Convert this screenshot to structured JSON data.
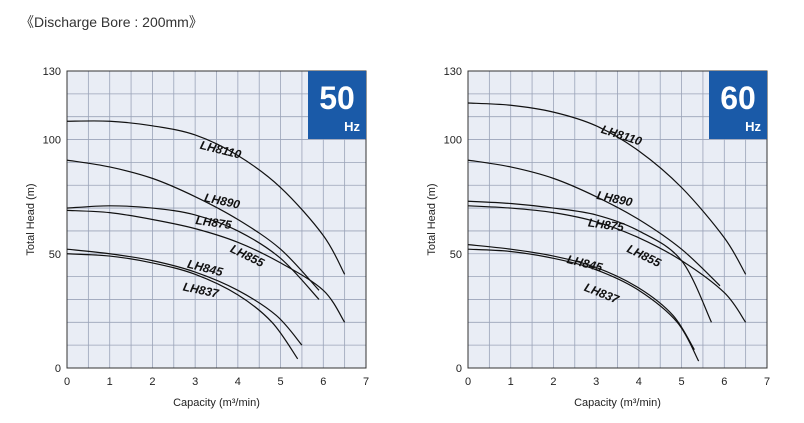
{
  "caption": "《Discharge Bore : 200mm》",
  "chart_data": [
    {
      "type": "line",
      "badge": {
        "number": "50",
        "unit": "Hz"
      },
      "xlabel": "Capacity (m³/min)",
      "ylabel": "Total Head (m)",
      "xlim": [
        0,
        7
      ],
      "ylim": [
        0,
        130
      ],
      "xticks": [
        "0",
        "1",
        "2",
        "3",
        "4",
        "5",
        "6",
        "7"
      ],
      "yticks": [
        {
          "v": 0,
          "t": "0"
        },
        {
          "v": 50,
          "t": "50"
        },
        {
          "v": 100,
          "t": "100"
        },
        {
          "v": 130,
          "t": "130"
        }
      ],
      "grid": true,
      "series": [
        {
          "name": "LH8110",
          "x": [
            0,
            1,
            2,
            3,
            4,
            5,
            6,
            6.5
          ],
          "y": [
            108,
            108,
            106,
            102,
            93,
            79,
            58,
            41
          ]
        },
        {
          "name": "LH890",
          "x": [
            0,
            1,
            2,
            3,
            4,
            5,
            5.9
          ],
          "y": [
            91,
            88,
            83,
            75,
            65,
            52,
            34
          ]
        },
        {
          "name": "LH875",
          "x": [
            0,
            1,
            2,
            3,
            4,
            5,
            5.9
          ],
          "y": [
            70,
            71,
            70,
            67,
            60,
            48,
            30
          ]
        },
        {
          "name": "LH855",
          "x": [
            0,
            1,
            2,
            3,
            4,
            5,
            6,
            6.5
          ],
          "y": [
            69,
            68,
            65,
            61,
            55,
            46,
            34,
            20
          ]
        },
        {
          "name": "LH845",
          "x": [
            0,
            1,
            2,
            3,
            4,
            4.9,
            5.5
          ],
          "y": [
            52,
            50,
            47,
            42,
            34,
            23,
            10
          ]
        },
        {
          "name": "LH837",
          "x": [
            0,
            1,
            2,
            3,
            4,
            4.8,
            5.4
          ],
          "y": [
            50,
            49,
            46,
            41,
            32,
            20,
            4
          ]
        }
      ],
      "labels": [
        {
          "text": "LH8110",
          "x": 3.1,
          "y": 96,
          "rot": 14
        },
        {
          "text": "LH890",
          "x": 3.2,
          "y": 73,
          "rot": 12
        },
        {
          "text": "LH875",
          "x": 3.0,
          "y": 63,
          "rot": 8
        },
        {
          "text": "LH855",
          "x": 3.8,
          "y": 51,
          "rot": 26
        },
        {
          "text": "LH845",
          "x": 2.8,
          "y": 44,
          "rot": 14
        },
        {
          "text": "LH837",
          "x": 2.7,
          "y": 34,
          "rot": 12
        }
      ]
    },
    {
      "type": "line",
      "badge": {
        "number": "60",
        "unit": "Hz"
      },
      "xlabel": "Capacity (m³/min)",
      "ylabel": "Total Head (m)",
      "xlim": [
        0,
        7
      ],
      "ylim": [
        0,
        130
      ],
      "xticks": [
        "0",
        "1",
        "2",
        "3",
        "4",
        "5",
        "6",
        "7"
      ],
      "yticks": [
        {
          "v": 0,
          "t": "0"
        },
        {
          "v": 50,
          "t": "50"
        },
        {
          "v": 100,
          "t": "100"
        },
        {
          "v": 130,
          "t": "130"
        }
      ],
      "grid": true,
      "series": [
        {
          "name": "LH8110",
          "x": [
            0,
            1,
            2,
            3,
            4,
            5,
            6,
            6.5
          ],
          "y": [
            116,
            115,
            112,
            106,
            95,
            79,
            57,
            41
          ]
        },
        {
          "name": "LH890",
          "x": [
            0,
            1,
            2,
            3,
            4,
            5,
            5.9
          ],
          "y": [
            91,
            88,
            83,
            75,
            65,
            52,
            36
          ]
        },
        {
          "name": "LH875",
          "x": [
            0,
            1,
            2,
            3,
            4,
            5,
            5.7
          ],
          "y": [
            73,
            72,
            70,
            67,
            60,
            47,
            20
          ]
        },
        {
          "name": "LH855",
          "x": [
            0,
            1,
            2,
            3,
            4,
            5,
            6,
            6.5
          ],
          "y": [
            71,
            70,
            68,
            64,
            57,
            47,
            33,
            20
          ]
        },
        {
          "name": "LH845",
          "x": [
            0,
            1,
            2,
            3,
            4,
            4.8,
            5.3
          ],
          "y": [
            54,
            52,
            49,
            44,
            35,
            23,
            8
          ]
        },
        {
          "name": "LH837",
          "x": [
            0,
            1,
            2,
            3,
            4,
            4.9,
            5.4
          ],
          "y": [
            52,
            51,
            48,
            43,
            34,
            20,
            3
          ]
        }
      ],
      "labels": [
        {
          "text": "LH8110",
          "x": 3.1,
          "y": 103,
          "rot": 18
        },
        {
          "text": "LH890",
          "x": 3.0,
          "y": 74,
          "rot": 12
        },
        {
          "text": "LH875",
          "x": 2.8,
          "y": 62,
          "rot": 8
        },
        {
          "text": "LH855",
          "x": 3.7,
          "y": 51,
          "rot": 26
        },
        {
          "text": "LH845",
          "x": 2.3,
          "y": 46,
          "rot": 14
        },
        {
          "text": "LH837",
          "x": 2.7,
          "y": 34,
          "rot": 22
        }
      ]
    }
  ]
}
